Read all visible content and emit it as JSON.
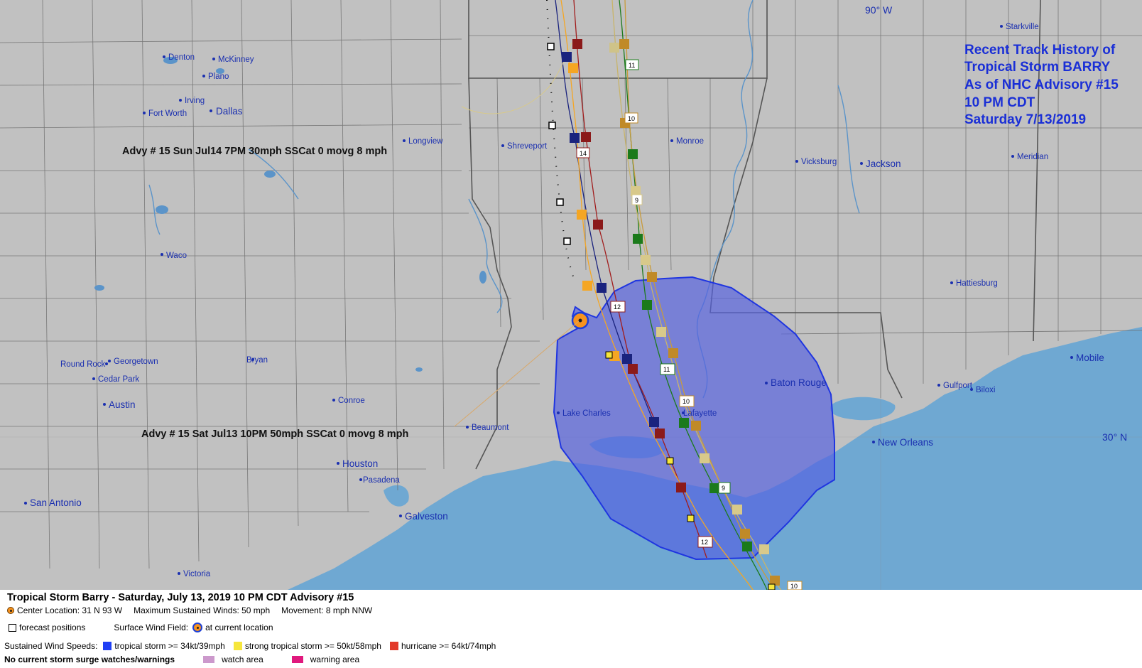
{
  "map": {
    "title_lines": [
      "Recent Track History of",
      "Tropical Storm BARRY",
      "As of NHC Advisory #15",
      "10 PM CDT",
      "Saturday 7/13/2019"
    ],
    "gridlines": {
      "lon_label": "90° W",
      "lat_label": "30° N"
    },
    "advisory_annotations": [
      "Advy # 15 Sun Jul14 7PM  30mph SSCat 0 movg 8 mph",
      "Advy # 15 Sat Jul13 10PM  50mph SSCat 0 movg 8 mph"
    ],
    "cities": [
      "Denton",
      "McKinney",
      "Plano",
      "Irving",
      "Fort Worth",
      "Dallas",
      "Longview",
      "Shreveport",
      "Monroe",
      "Vicksburg",
      "Jackson",
      "Meridian",
      "Starkville",
      "Waco",
      "Hattiesburg",
      "Round Rock",
      "Georgetown",
      "Cedar Park",
      "Bryan",
      "Austin",
      "Conroe",
      "Beaumont",
      "Lake Charles",
      "Lafayette",
      "Baton Rouge",
      "Mobile",
      "Gulfport",
      "Biloxi",
      "New Orleans",
      "Houston",
      "Pasadena",
      "Galveston",
      "San Antonio",
      "Victoria"
    ],
    "track_hour_labels": [
      "11",
      "10",
      "14",
      "9",
      "12",
      "11",
      "10",
      "9",
      "12",
      "10"
    ],
    "colors": {
      "land": "#c1c1c1",
      "water": "#6fa8d2",
      "wind_field": "#5661e0",
      "title_text": "#1a2fd6",
      "city_text": "#1a2fb0",
      "borders": "#5a5a5a"
    }
  },
  "legend": {
    "title": "Tropical Storm Barry  -  Saturday, July 13, 2019  10 PM CDT   Advisory #15",
    "center_location": "Center Location: 31 N  93 W",
    "max_winds": "Maximum Sustained Winds: 50 mph",
    "movement": "Movement: 8 mph NNW",
    "forecast_positions": "forecast positions",
    "surface_wind_field": "Surface Wind Field:",
    "at_current_location": "at current location",
    "sustained_wind_speeds": "Sustained Wind Speeds:",
    "tropical_storm": "tropical storm >= 34kt/39mph",
    "strong_tropical_storm": "strong tropical storm >= 50kt/58mph",
    "hurricane": "hurricane >= 64kt/74mph",
    "surge_status": "No current storm surge watches/warnings",
    "watch_area": "watch area",
    "warning_area": "warning area",
    "colors": {
      "tropical_storm": "#1f3ff5",
      "strong_tropical_storm": "#f6e63c",
      "hurricane": "#e23a2a",
      "watch_area": "#cc99cc",
      "warning_area": "#e0197d"
    }
  }
}
